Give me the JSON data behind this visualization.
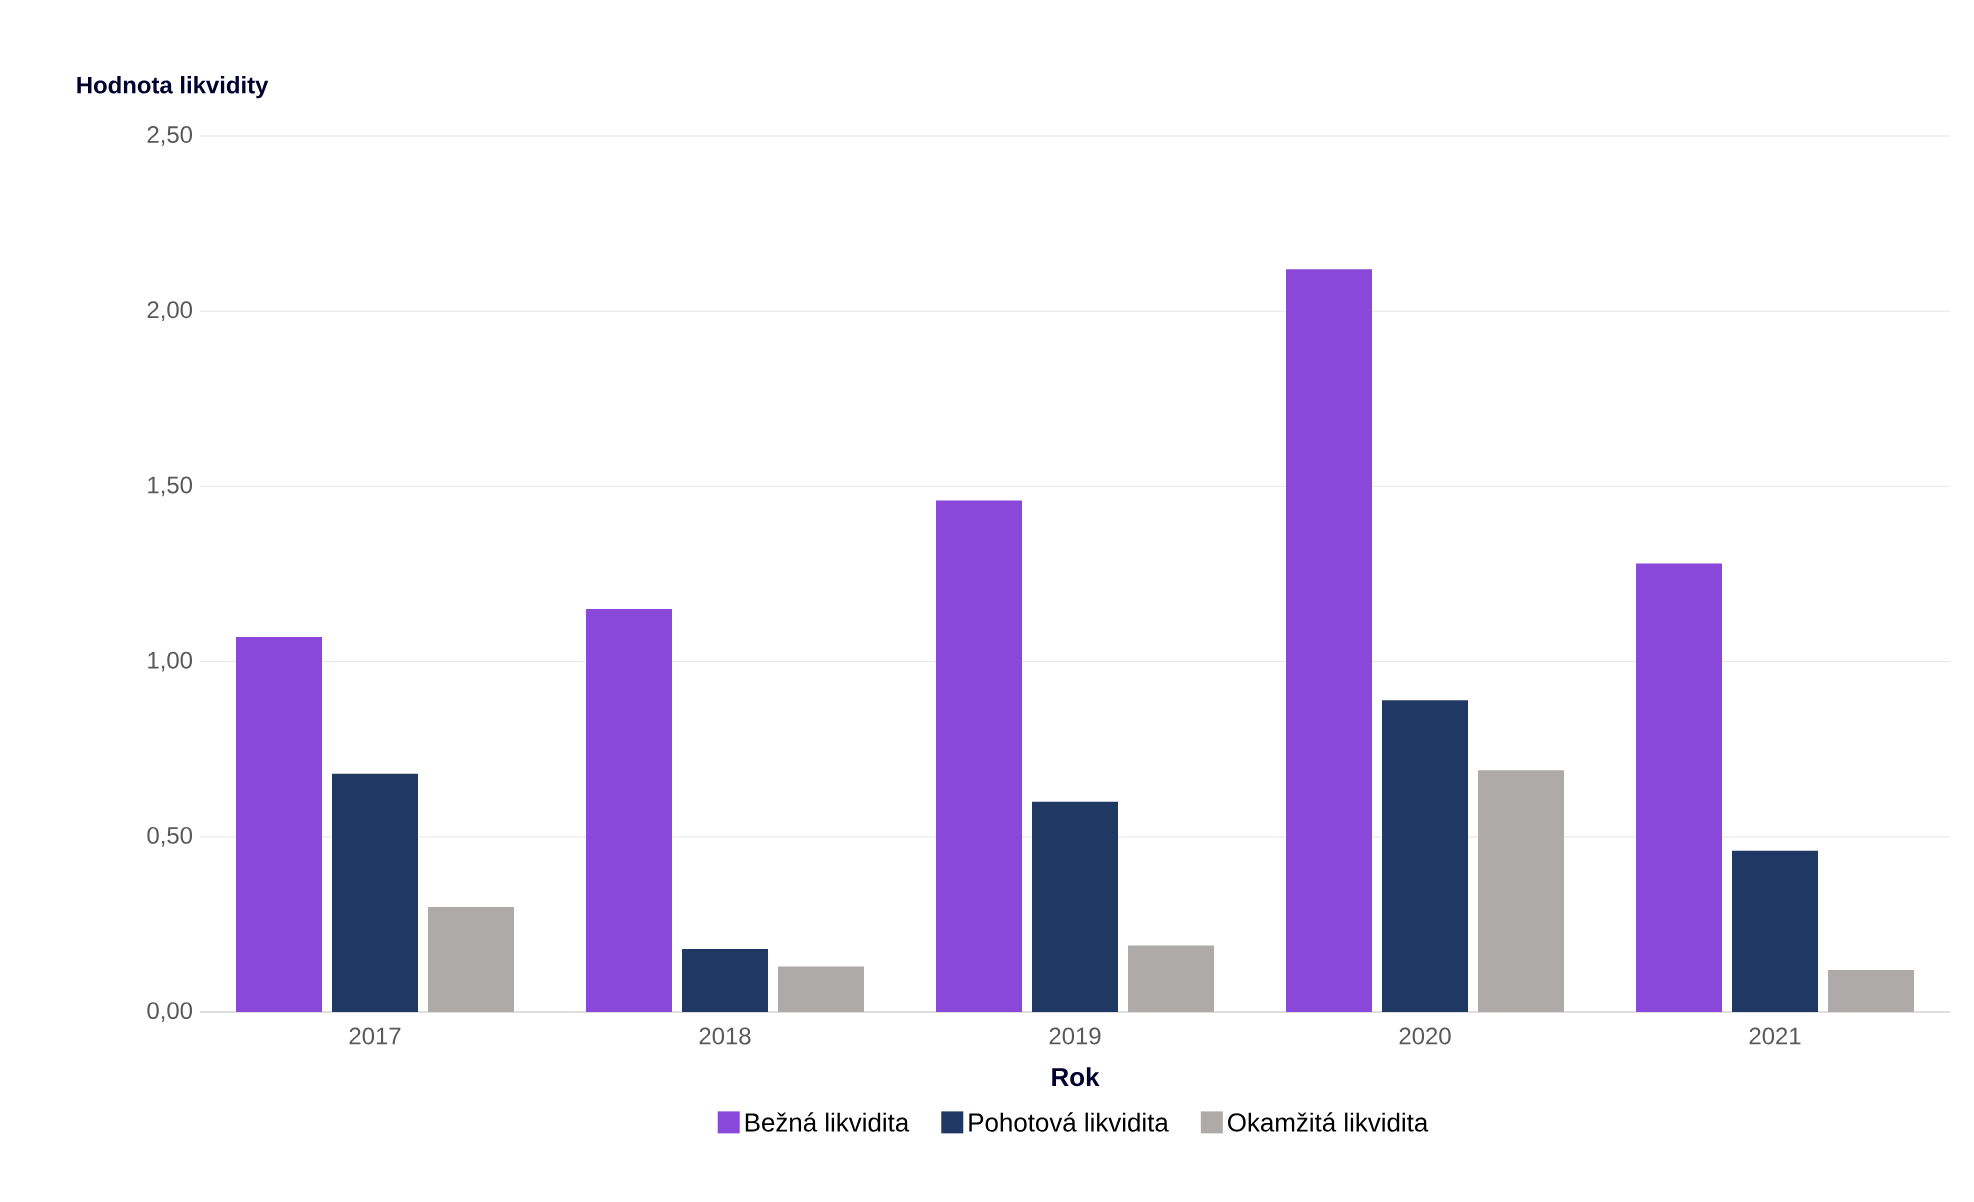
{
  "chart_data": {
    "type": "bar",
    "xlabel": "Rok",
    "ylabel": "Hodnota likvidity",
    "categories": [
      "2017",
      "2018",
      "2019",
      "2020",
      "2021"
    ],
    "series": [
      {
        "name": "Bežná likvidita",
        "color": "#8a48da",
        "values": [
          1.07,
          1.15,
          1.46,
          2.12,
          1.28
        ]
      },
      {
        "name": "Pohotová likvidita",
        "color": "#1f3864",
        "values": [
          0.68,
          0.18,
          0.6,
          0.89,
          0.46
        ]
      },
      {
        "name": "Okamžitá likvidita",
        "color": "#aeaaaa",
        "values": [
          0.3,
          0.13,
          0.19,
          0.69,
          0.12
        ]
      }
    ],
    "ylim": [
      0,
      2.5
    ],
    "yticks": [
      {
        "value": 0,
        "label": "0,00"
      },
      {
        "value": 0.5,
        "label": "0,50"
      },
      {
        "value": 1,
        "label": "1,00"
      },
      {
        "value": 1.5,
        "label": "1,50"
      },
      {
        "value": 2,
        "label": "2,00"
      },
      {
        "value": 2.5,
        "label": "2,50"
      }
    ],
    "grid": "y",
    "legend": "bottom"
  }
}
